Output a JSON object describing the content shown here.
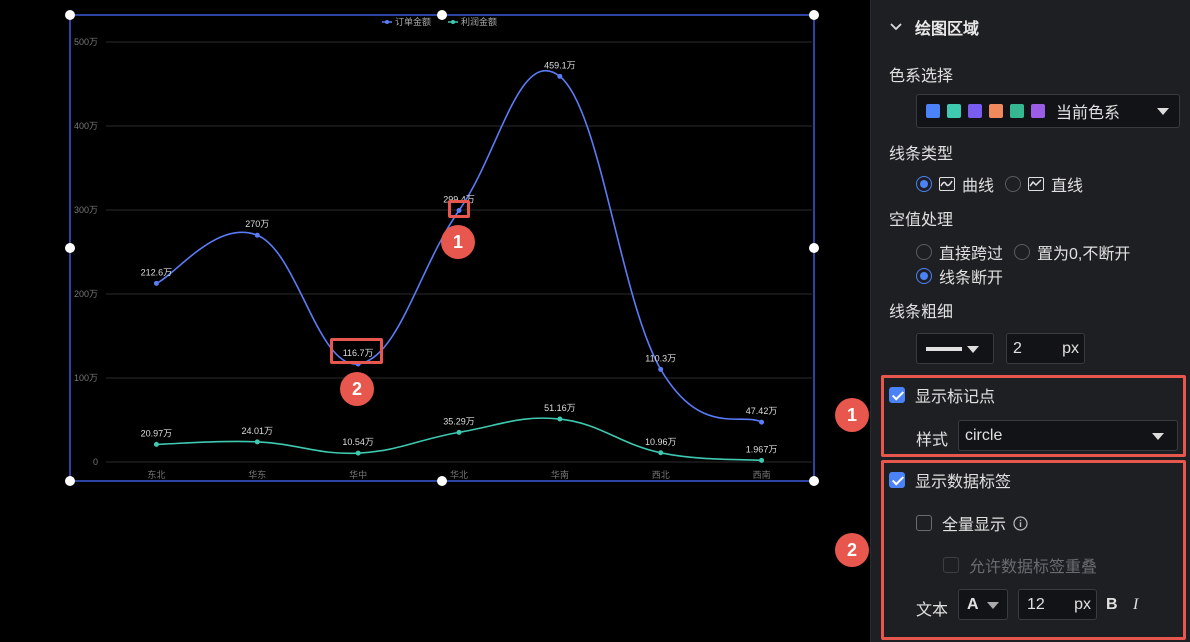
{
  "chart_data": {
    "type": "line",
    "categories": [
      "东北",
      "华东",
      "华中",
      "华北",
      "华南",
      "西北",
      "西南"
    ],
    "series": [
      {
        "name": "订单金额",
        "values": [
          212.6,
          270,
          116.7,
          299.4,
          459.1,
          110.3,
          47.42
        ],
        "labels": [
          "212.6万",
          "270万",
          "116.7万",
          "299.4万",
          "459.1万",
          "110.3万",
          "47.42万"
        ],
        "color": "#5b7cf7"
      },
      {
        "name": "利润金额",
        "values": [
          20.97,
          24.01,
          10.54,
          35.29,
          51.16,
          10.96,
          1.967
        ],
        "labels": [
          "20.97万",
          "24.01万",
          "10.54万",
          "35.29万",
          "51.16万",
          "10.96万",
          "1.967万"
        ],
        "color": "#3ec9b0"
      }
    ],
    "ylim": [
      0,
      500
    ],
    "yticks": [
      "0",
      "100万",
      "200万",
      "300万",
      "400万",
      "500万"
    ],
    "grid": true,
    "legend_position": "top-center",
    "smooth": true
  },
  "annotations": {
    "badge1": "1",
    "badge2": "2"
  },
  "panel": {
    "section_title": "绘图区域",
    "color_scheme_label": "色系选择",
    "color_scheme_value": "当前色系",
    "color_scheme_swatches": [
      "#4c82f7",
      "#3ec9b0",
      "#7a5cf0",
      "#f08a5d",
      "#35b892",
      "#9b5de5"
    ],
    "line_type_label": "线条类型",
    "line_type_curve": "曲线",
    "line_type_straight": "直线",
    "null_label": "空值处理",
    "null_skip": "直接跨过",
    "null_zero": "置为0,不断开",
    "null_break": "线条断开",
    "line_width_label": "线条粗细",
    "line_width_value": "2",
    "line_width_unit": "px",
    "show_marker_label": "显示标记点",
    "marker_style_label": "样式",
    "marker_style_value": "circle",
    "show_data_label": "显示数据标签",
    "show_all_label": "全量显示",
    "allow_overlap_label": "允许数据标签重叠",
    "text_label": "文本",
    "font_glyph": "A",
    "font_size_value": "12",
    "font_size_unit": "px",
    "bold_glyph": "B",
    "italic_glyph": "I"
  }
}
